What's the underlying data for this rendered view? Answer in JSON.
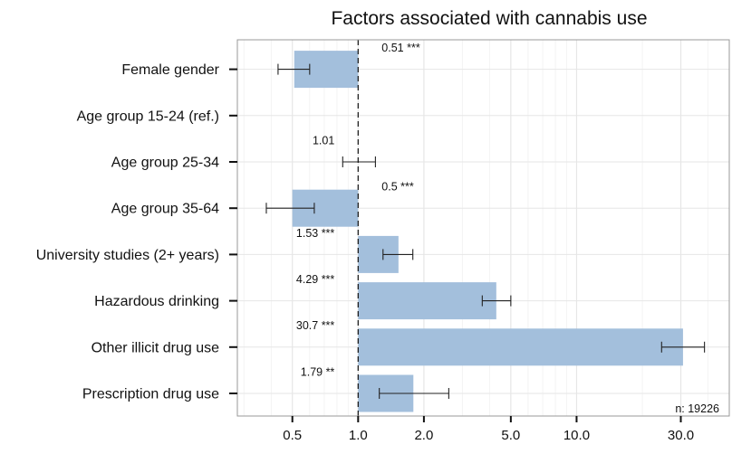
{
  "chart_data": {
    "type": "bar",
    "title": "Factors associated with cannabis use",
    "xlabel": "",
    "ylabel": "",
    "x_scale": "log",
    "reference_value": 1.0,
    "xlim": [
      0.28,
      50
    ],
    "x_ticks": [
      0.5,
      1.0,
      2.0,
      5.0,
      10.0,
      30.0
    ],
    "x_tick_labels": [
      "0.5",
      "1.0",
      "2.0",
      "5.0",
      "10.0",
      "30.0"
    ],
    "categories": [
      "Female gender",
      "Age group 15-24 (ref.)",
      "Age group 25-34",
      "Age group 35-64",
      "University studies (2+ years)",
      "Hazardous drinking",
      "Other illicit drug use",
      "Prescription drug use"
    ],
    "values": [
      0.51,
      1.0,
      1.01,
      0.5,
      1.53,
      4.29,
      30.7,
      1.79
    ],
    "ci_low": [
      0.43,
      null,
      0.85,
      0.38,
      1.3,
      3.7,
      24.5,
      1.25
    ],
    "ci_high": [
      0.6,
      null,
      1.2,
      0.63,
      1.78,
      5.0,
      38.5,
      2.6
    ],
    "value_labels": [
      "0.51 ***",
      "",
      "1.01",
      "0.5 ***",
      "1.53 ***",
      "4.29 ***",
      "30.7 ***",
      "1.79 **"
    ],
    "annotation": "n: 19226",
    "grid": true,
    "colors": {
      "bar": "#a3bfdc",
      "grid": "#e6e6e6",
      "frame": "#999999",
      "text": "#111111"
    }
  }
}
